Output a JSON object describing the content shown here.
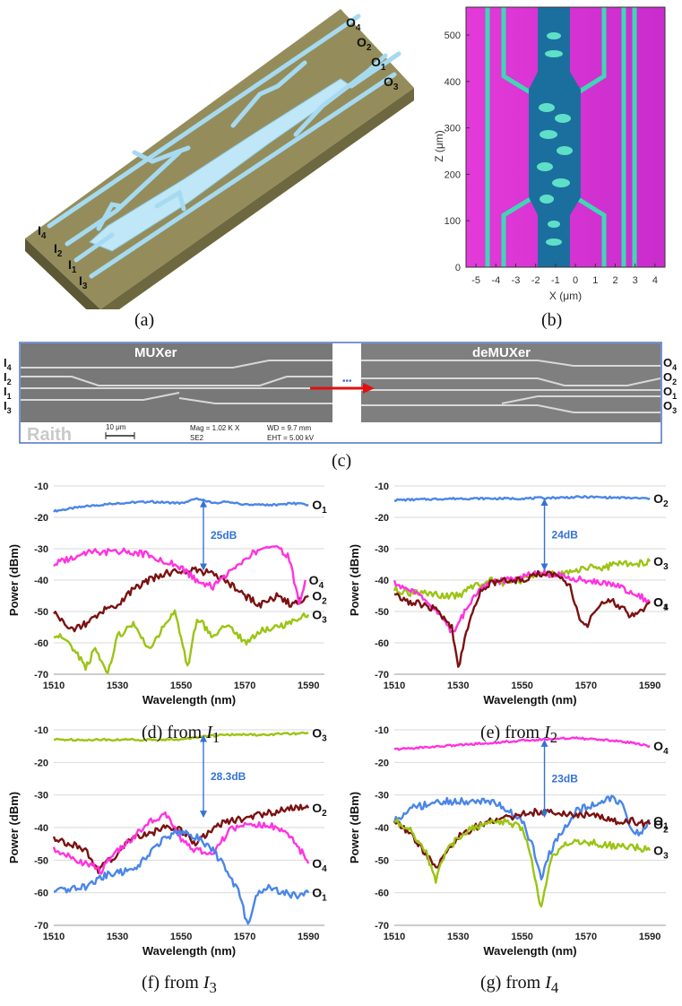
{
  "panel_a": {
    "caption": "(a)",
    "inputs": [
      {
        "main": "I",
        "sub": "4"
      },
      {
        "main": "I",
        "sub": "2"
      },
      {
        "main": "I",
        "sub": "1"
      },
      {
        "main": "I",
        "sub": "3"
      }
    ],
    "outputs": [
      {
        "main": "O",
        "sub": "4"
      },
      {
        "main": "O",
        "sub": "2"
      },
      {
        "main": "O",
        "sub": "1"
      },
      {
        "main": "O",
        "sub": "3"
      }
    ]
  },
  "panel_b": {
    "caption": "(b)",
    "xlabel": "X (μm)",
    "ylabel": "Z (μm)",
    "xticks": [
      "-5",
      "-4",
      "-3",
      "-2",
      "-1",
      "0",
      "1",
      "2",
      "3",
      "4"
    ],
    "yticks": [
      "0",
      "100",
      "200",
      "300",
      "400",
      "500"
    ]
  },
  "panel_c": {
    "caption": "(c)",
    "left_title": "MUXer",
    "right_title": "deMUXer",
    "brand": "Raith",
    "scale": "10 μm",
    "mag": "Mag =  1.02 K X",
    "wd": "WD =  9.7 mm",
    "detector": "SE2",
    "eht": "EHT =  5.00 kV",
    "dots": "•••",
    "left_labels": [
      {
        "main": "I",
        "sub": "4"
      },
      {
        "main": "I",
        "sub": "2"
      },
      {
        "main": "I",
        "sub": "1"
      },
      {
        "main": "I",
        "sub": "3"
      }
    ],
    "right_labels": [
      {
        "main": "O",
        "sub": "4"
      },
      {
        "main": "O",
        "sub": "2"
      },
      {
        "main": "O",
        "sub": "1"
      },
      {
        "main": "O",
        "sub": "3"
      }
    ]
  },
  "colors": {
    "O1_blue": "#4a86e8",
    "O2_maroon": "#7b1111",
    "O3_green": "#9bc414",
    "O4_magenta": "#ff33e0",
    "arrow": "#3572d6",
    "sem_arrow": "#e01010"
  },
  "chart_data": [
    {
      "type": "line",
      "caption": "(d) from I1",
      "caption_parts": {
        "text": "(d) from ",
        "main": "I",
        "sub": "1"
      },
      "xlabel": "Wavelength (nm)",
      "ylabel": "Power (dBm)",
      "xlim": [
        1510,
        1595
      ],
      "ylim": [
        -70,
        -10
      ],
      "xticks": [
        1510,
        1530,
        1550,
        1570,
        1590
      ],
      "yticks": [
        -10,
        -20,
        -30,
        -40,
        -50,
        -60,
        -70
      ],
      "annotation": "25dB",
      "series": [
        {
          "name": "O1",
          "sub": "1",
          "color": "#4a86e8",
          "x": [
            1510,
            1520,
            1530,
            1540,
            1550,
            1555,
            1560,
            1565,
            1570,
            1575,
            1580,
            1585,
            1590
          ],
          "y": [
            -18,
            -16.5,
            -15.5,
            -15,
            -15.5,
            -14,
            -15.5,
            -15,
            -16,
            -16,
            -16,
            -15.5,
            -16
          ]
        },
        {
          "name": "O2",
          "sub": "2",
          "color": "#7b1111",
          "x": [
            1510,
            1515,
            1520,
            1525,
            1530,
            1535,
            1540,
            1545,
            1550,
            1555,
            1560,
            1565,
            1570,
            1575,
            1580,
            1585,
            1588,
            1590
          ],
          "y": [
            -50,
            -56,
            -54,
            -50,
            -48,
            -43,
            -40,
            -38,
            -37,
            -37,
            -38,
            -41,
            -45,
            -48,
            -45,
            -48,
            -46,
            -45
          ]
        },
        {
          "name": "O3",
          "sub": "3",
          "color": "#9bc414",
          "x": [
            1510,
            1515,
            1520,
            1523,
            1527,
            1530,
            1535,
            1540,
            1545,
            1548,
            1552,
            1555,
            1560,
            1565,
            1570,
            1575,
            1580,
            1585,
            1590
          ],
          "y": [
            -57,
            -60,
            -68,
            -62,
            -70,
            -58,
            -54,
            -62,
            -54,
            -50,
            -68,
            -52,
            -58,
            -54,
            -60,
            -56,
            -55,
            -53,
            -51
          ]
        },
        {
          "name": "O4",
          "sub": "4",
          "color": "#ff33e0",
          "x": [
            1510,
            1515,
            1520,
            1525,
            1530,
            1535,
            1540,
            1545,
            1550,
            1555,
            1560,
            1565,
            1570,
            1575,
            1580,
            1584,
            1587,
            1589
          ],
          "y": [
            -35,
            -33,
            -31,
            -31,
            -31,
            -31,
            -32,
            -34,
            -36,
            -40,
            -42,
            -38,
            -33,
            -30,
            -29,
            -33,
            -47,
            -40
          ]
        }
      ]
    },
    {
      "type": "line",
      "caption": "(e) from I2",
      "caption_parts": {
        "text": "(e) from ",
        "main": "I",
        "sub": "2"
      },
      "xlabel": "Wavelength (nm)",
      "ylabel": "Power (dBm)",
      "xlim": [
        1510,
        1595
      ],
      "ylim": [
        -70,
        -10
      ],
      "xticks": [
        1510,
        1530,
        1550,
        1570,
        1590
      ],
      "yticks": [
        -10,
        -20,
        -30,
        -40,
        -50,
        -60,
        -70
      ],
      "annotation": "24dB",
      "series": [
        {
          "name": "O2",
          "sub": "2",
          "color": "#4a86e8",
          "x": [
            1510,
            1530,
            1550,
            1570,
            1590
          ],
          "y": [
            -14.5,
            -14,
            -14,
            -13.5,
            -14
          ]
        },
        {
          "name": "O3",
          "sub": "3",
          "color": "#9bc414",
          "x": [
            1510,
            1515,
            1520,
            1525,
            1530,
            1535,
            1540,
            1545,
            1550,
            1555,
            1560,
            1565,
            1570,
            1575,
            1580,
            1585,
            1590
          ],
          "y": [
            -43,
            -44,
            -44,
            -45,
            -45,
            -42,
            -40,
            -41,
            -40,
            -38,
            -38,
            -37,
            -36,
            -36,
            -35,
            -35,
            -34
          ]
        },
        {
          "name": "O4",
          "sub": "4",
          "color": "#ff33e0",
          "x": [
            1510,
            1515,
            1520,
            1525,
            1528,
            1531,
            1535,
            1540,
            1545,
            1550,
            1555,
            1560,
            1565,
            1570,
            1575,
            1580,
            1585,
            1590
          ],
          "y": [
            -41,
            -43,
            -47,
            -52,
            -57,
            -52,
            -45,
            -41,
            -40,
            -39,
            -38,
            -38,
            -39,
            -40,
            -41,
            -42,
            -44,
            -47
          ]
        },
        {
          "name": "O1",
          "sub": "1",
          "color": "#7b1111",
          "x": [
            1510,
            1515,
            1520,
            1524,
            1528,
            1530,
            1533,
            1537,
            1540,
            1545,
            1550,
            1555,
            1560,
            1565,
            1568,
            1570,
            1573,
            1577,
            1580,
            1585,
            1590
          ],
          "y": [
            -45,
            -47,
            -48,
            -50,
            -55,
            -68,
            -55,
            -44,
            -41,
            -40,
            -40,
            -38,
            -38,
            -42,
            -52,
            -55,
            -50,
            -46,
            -48,
            -52,
            -47
          ]
        }
      ]
    },
    {
      "type": "line",
      "caption": "(f) from I3",
      "caption_parts": {
        "text": "(f) from ",
        "main": "I",
        "sub": "3"
      },
      "xlabel": "Wavelength (nm)",
      "ylabel": "Power (dBm)",
      "xlim": [
        1510,
        1595
      ],
      "ylim": [
        -70,
        -10
      ],
      "xticks": [
        1510,
        1530,
        1550,
        1570,
        1590
      ],
      "yticks": [
        -10,
        -20,
        -30,
        -40,
        -50,
        -60,
        -70
      ],
      "annotation": "28.3dB",
      "series": [
        {
          "name": "O3",
          "sub": "3",
          "color": "#9bc414",
          "x": [
            1510,
            1520,
            1530,
            1540,
            1550,
            1557,
            1565,
            1575,
            1590
          ],
          "y": [
            -13,
            -13,
            -13,
            -13,
            -13,
            -12,
            -11.5,
            -11.5,
            -11
          ]
        },
        {
          "name": "O2",
          "sub": "2",
          "color": "#7b1111",
          "x": [
            1510,
            1515,
            1520,
            1524,
            1530,
            1535,
            1540,
            1545,
            1550,
            1555,
            1560,
            1565,
            1570,
            1575,
            1580,
            1585,
            1590
          ],
          "y": [
            -43,
            -45,
            -47,
            -53,
            -48,
            -43,
            -42,
            -40,
            -41,
            -45,
            -40,
            -38,
            -37,
            -36,
            -35,
            -34,
            -34
          ]
        },
        {
          "name": "O4",
          "sub": "4",
          "color": "#ff33e0",
          "x": [
            1510,
            1515,
            1520,
            1525,
            1530,
            1535,
            1540,
            1545,
            1550,
            1555,
            1560,
            1565,
            1570,
            1575,
            1580,
            1585,
            1590
          ],
          "y": [
            -47,
            -49,
            -51,
            -53,
            -47,
            -43,
            -38,
            -36,
            -44,
            -47,
            -48,
            -41,
            -39,
            -39,
            -40,
            -43,
            -51
          ]
        },
        {
          "name": "O1",
          "sub": "1",
          "color": "#4a86e8",
          "x": [
            1510,
            1515,
            1520,
            1525,
            1530,
            1535,
            1540,
            1545,
            1550,
            1555,
            1560,
            1565,
            1568,
            1571,
            1574,
            1578,
            1582,
            1586,
            1590
          ],
          "y": [
            -60,
            -59,
            -58,
            -55,
            -54,
            -53,
            -48,
            -43,
            -41,
            -43,
            -47,
            -54,
            -60,
            -70,
            -60,
            -58,
            -60,
            -61,
            -60
          ]
        }
      ]
    },
    {
      "type": "line",
      "caption": "(g) from I4",
      "caption_parts": {
        "text": "(g) from ",
        "main": "I",
        "sub": "4"
      },
      "xlabel": "Wavelength (nm)",
      "ylabel": "Power (dBm)",
      "xlim": [
        1510,
        1595
      ],
      "ylim": [
        -70,
        -10
      ],
      "xticks": [
        1510,
        1530,
        1550,
        1570,
        1590
      ],
      "yticks": [
        -10,
        -20,
        -30,
        -40,
        -50,
        -60,
        -70
      ],
      "annotation": "23dB",
      "series": [
        {
          "name": "O4",
          "sub": "4",
          "color": "#ff33e0",
          "x": [
            1510,
            1525,
            1540,
            1555,
            1565,
            1575,
            1585,
            1590
          ],
          "y": [
            -16,
            -15,
            -14,
            -13,
            -12.5,
            -13,
            -14,
            -15
          ]
        },
        {
          "name": "O1",
          "sub": "1",
          "color": "#4a86e8",
          "x": [
            1510,
            1515,
            1520,
            1525,
            1530,
            1535,
            1540,
            1545,
            1550,
            1553,
            1556,
            1559,
            1563,
            1567,
            1572,
            1577,
            1581,
            1584,
            1587,
            1590
          ],
          "y": [
            -38,
            -34,
            -33,
            -32,
            -32,
            -32,
            -32,
            -34,
            -38,
            -45,
            -55,
            -47,
            -40,
            -35,
            -33,
            -31,
            -32,
            -40,
            -42,
            -38
          ]
        },
        {
          "name": "O2",
          "sub": "2",
          "color": "#7b1111",
          "x": [
            1510,
            1515,
            1520,
            1523,
            1525,
            1530,
            1535,
            1540,
            1545,
            1550,
            1555,
            1560,
            1565,
            1570,
            1575,
            1580,
            1585,
            1590
          ],
          "y": [
            -38,
            -42,
            -48,
            -52,
            -50,
            -43,
            -40,
            -38,
            -37,
            -36,
            -35,
            -35,
            -36,
            -36,
            -37,
            -38,
            -38,
            -39
          ]
        },
        {
          "name": "O3",
          "sub": "3",
          "color": "#9bc414",
          "x": [
            1510,
            1515,
            1520,
            1523,
            1526,
            1530,
            1535,
            1540,
            1545,
            1550,
            1553,
            1556,
            1559,
            1563,
            1568,
            1575,
            1580,
            1585,
            1590
          ],
          "y": [
            -38,
            -40,
            -48,
            -56,
            -48,
            -43,
            -40,
            -38,
            -38,
            -40,
            -50,
            -65,
            -50,
            -45,
            -44,
            -45,
            -46,
            -46,
            -47
          ]
        }
      ]
    }
  ]
}
